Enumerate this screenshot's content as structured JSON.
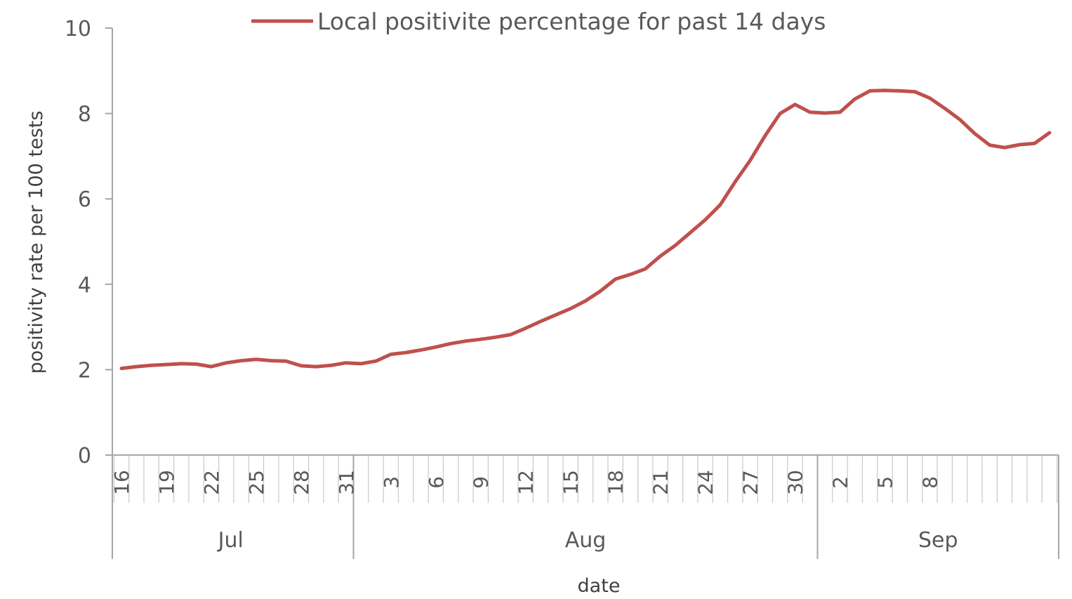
{
  "chart_data": {
    "type": "line",
    "xlabel": "date",
    "ylabel": "positivity rate per 100 tests",
    "ylim": [
      0,
      10
    ],
    "yticks": [
      0,
      2,
      4,
      6,
      8,
      10
    ],
    "grid": false,
    "legend_position": "top-center",
    "x_start_date": "Jul 16",
    "day_tick_labels": [
      "16",
      "19",
      "22",
      "25",
      "28",
      "31",
      "3",
      "6",
      "9",
      "12",
      "15",
      "18",
      "21",
      "24",
      "27",
      "30",
      "2",
      "5",
      "8"
    ],
    "months": [
      "Jul",
      "Aug",
      "Sep"
    ],
    "series": [
      {
        "name": "Local positivite percentage for past 14 days",
        "color": "#c0504d",
        "values": [
          2.03,
          2.07,
          2.1,
          2.12,
          2.14,
          2.13,
          2.07,
          2.16,
          2.21,
          2.24,
          2.21,
          2.2,
          2.09,
          2.07,
          2.1,
          2.16,
          2.14,
          2.2,
          2.36,
          2.4,
          2.46,
          2.53,
          2.61,
          2.67,
          2.71,
          2.76,
          2.82,
          2.97,
          3.13,
          3.28,
          3.43,
          3.61,
          3.84,
          4.12,
          4.23,
          4.36,
          4.66,
          4.91,
          5.21,
          5.51,
          5.86,
          6.4,
          6.9,
          7.48,
          8.0,
          8.21,
          8.03,
          8.01,
          8.03,
          8.34,
          8.53,
          8.54,
          8.53,
          8.51,
          8.36,
          8.12,
          7.86,
          7.53,
          7.26,
          7.2,
          7.27,
          7.3,
          7.55
        ]
      }
    ]
  }
}
